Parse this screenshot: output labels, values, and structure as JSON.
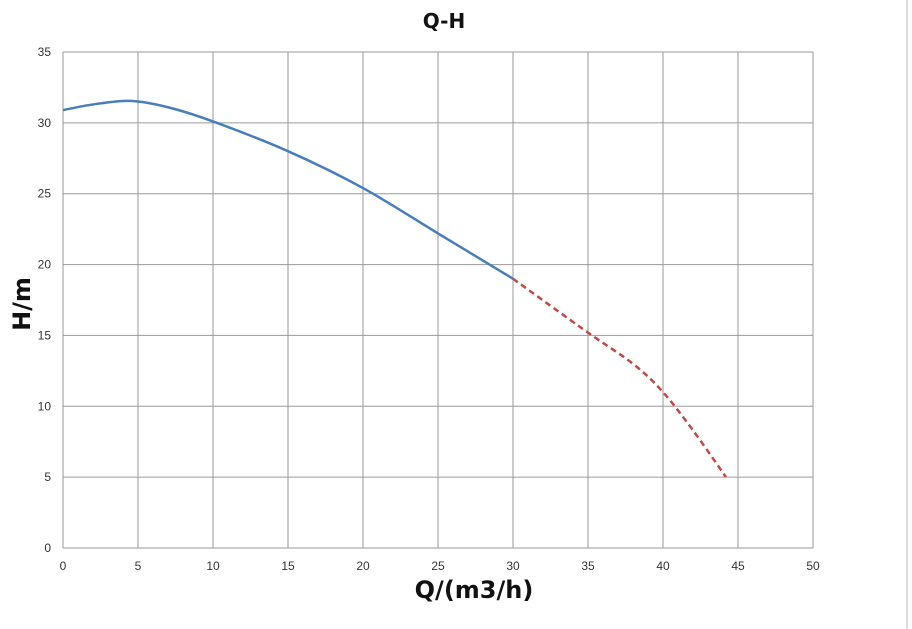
{
  "chart_data": {
    "type": "line",
    "title": "Q-H",
    "xlabel": "Q/(m3/h)",
    "ylabel": "H/m",
    "xlim": [
      0,
      50
    ],
    "ylim": [
      0,
      35
    ],
    "xticks": [
      "0",
      "5",
      "10",
      "15",
      "20",
      "25",
      "30",
      "35",
      "40",
      "45",
      "50"
    ],
    "yticks": [
      "0",
      "5",
      "10",
      "15",
      "20",
      "25",
      "30",
      "35"
    ],
    "grid": true,
    "legend": "none",
    "series": [
      {
        "style": "solid",
        "color": "#4a7ebb",
        "x": [
          0,
          2,
          4.5,
          7,
          10,
          15,
          20,
          25,
          30
        ],
        "y": [
          30.9,
          31.3,
          31.55,
          31.1,
          30.1,
          28.0,
          25.4,
          22.2,
          19.0
        ]
      },
      {
        "style": "dashed",
        "color": "#be4b48",
        "x": [
          30,
          35,
          38,
          40,
          42,
          44.2
        ],
        "y": [
          19.0,
          15.2,
          13.0,
          11.0,
          8.3,
          5.0
        ]
      }
    ]
  }
}
